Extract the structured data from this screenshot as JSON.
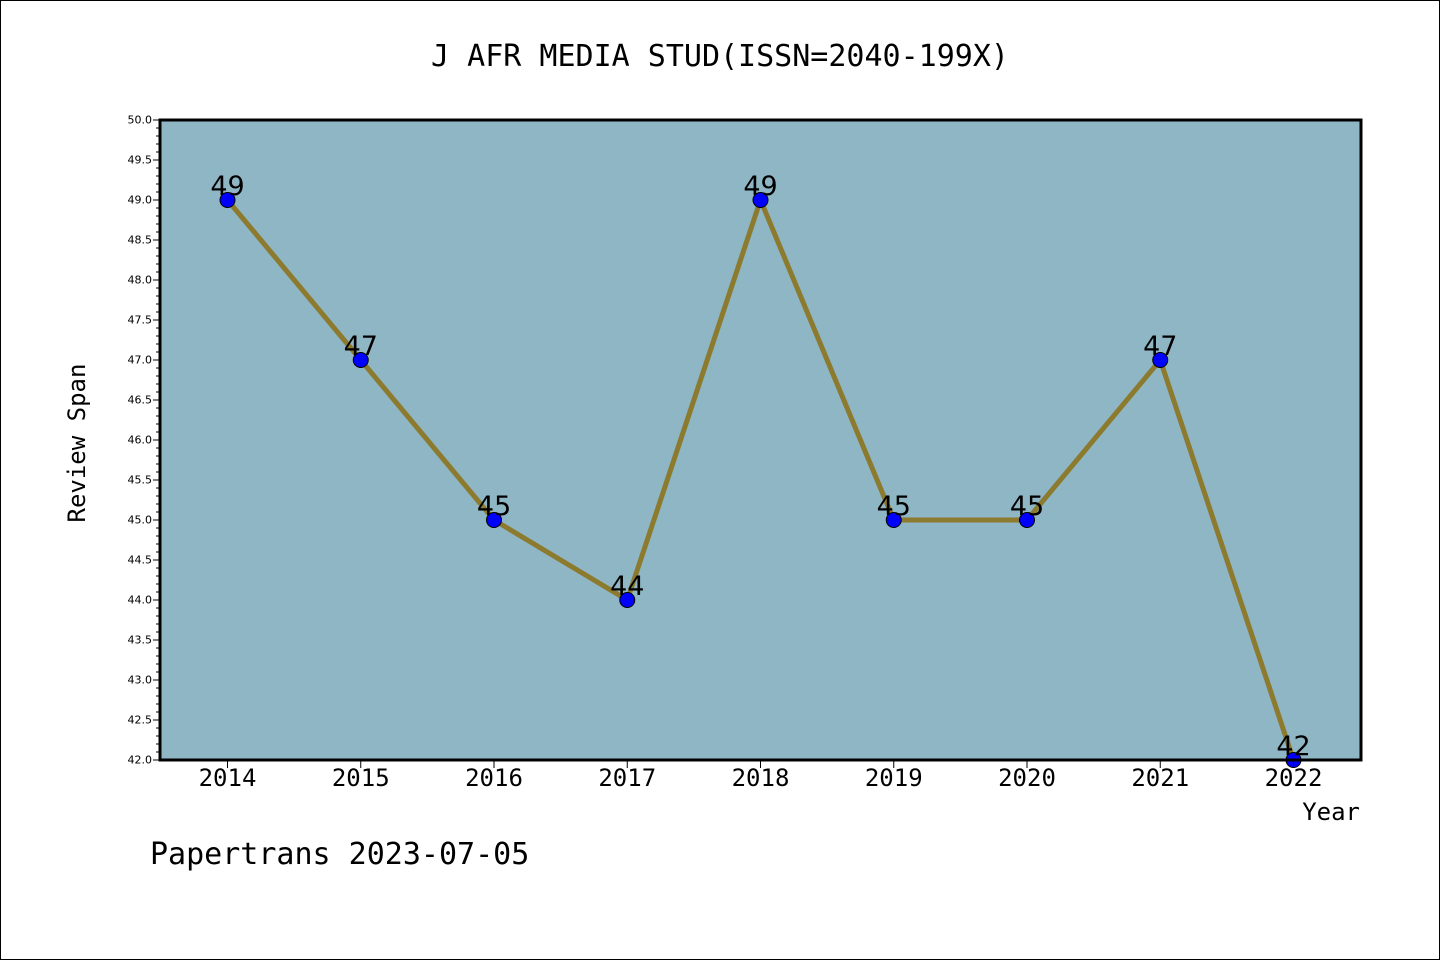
{
  "chart_data": {
    "type": "line",
    "title": "J AFR MEDIA STUD(ISSN=2040-199X)",
    "xlabel": "Year",
    "ylabel": "Review Span",
    "categories": [
      "2014",
      "2015",
      "2016",
      "2017",
      "2018",
      "2019",
      "2020",
      "2021",
      "2022"
    ],
    "series": [
      {
        "values": [
          49,
          47,
          45,
          44,
          49,
          45,
          45,
          47,
          42
        ]
      }
    ],
    "data_labels": [
      "49",
      "47",
      "45",
      "44",
      "49",
      "45",
      "45",
      "47",
      "42"
    ],
    "ylim": [
      42.0,
      50.0
    ],
    "yticks": [
      "42.0",
      "42.5",
      "43.0",
      "43.5",
      "44.0",
      "44.5",
      "45.0",
      "45.5",
      "46.0",
      "46.5",
      "47.0",
      "47.5",
      "48.0",
      "48.5",
      "49.0",
      "49.5",
      "50.0"
    ],
    "grid": false,
    "colors": {
      "plot_background": "#8fb6c4",
      "line": "#8c7a2e",
      "marker": "#0000ff"
    }
  },
  "footer": {
    "caption": "Papertrans 2023-07-05"
  }
}
